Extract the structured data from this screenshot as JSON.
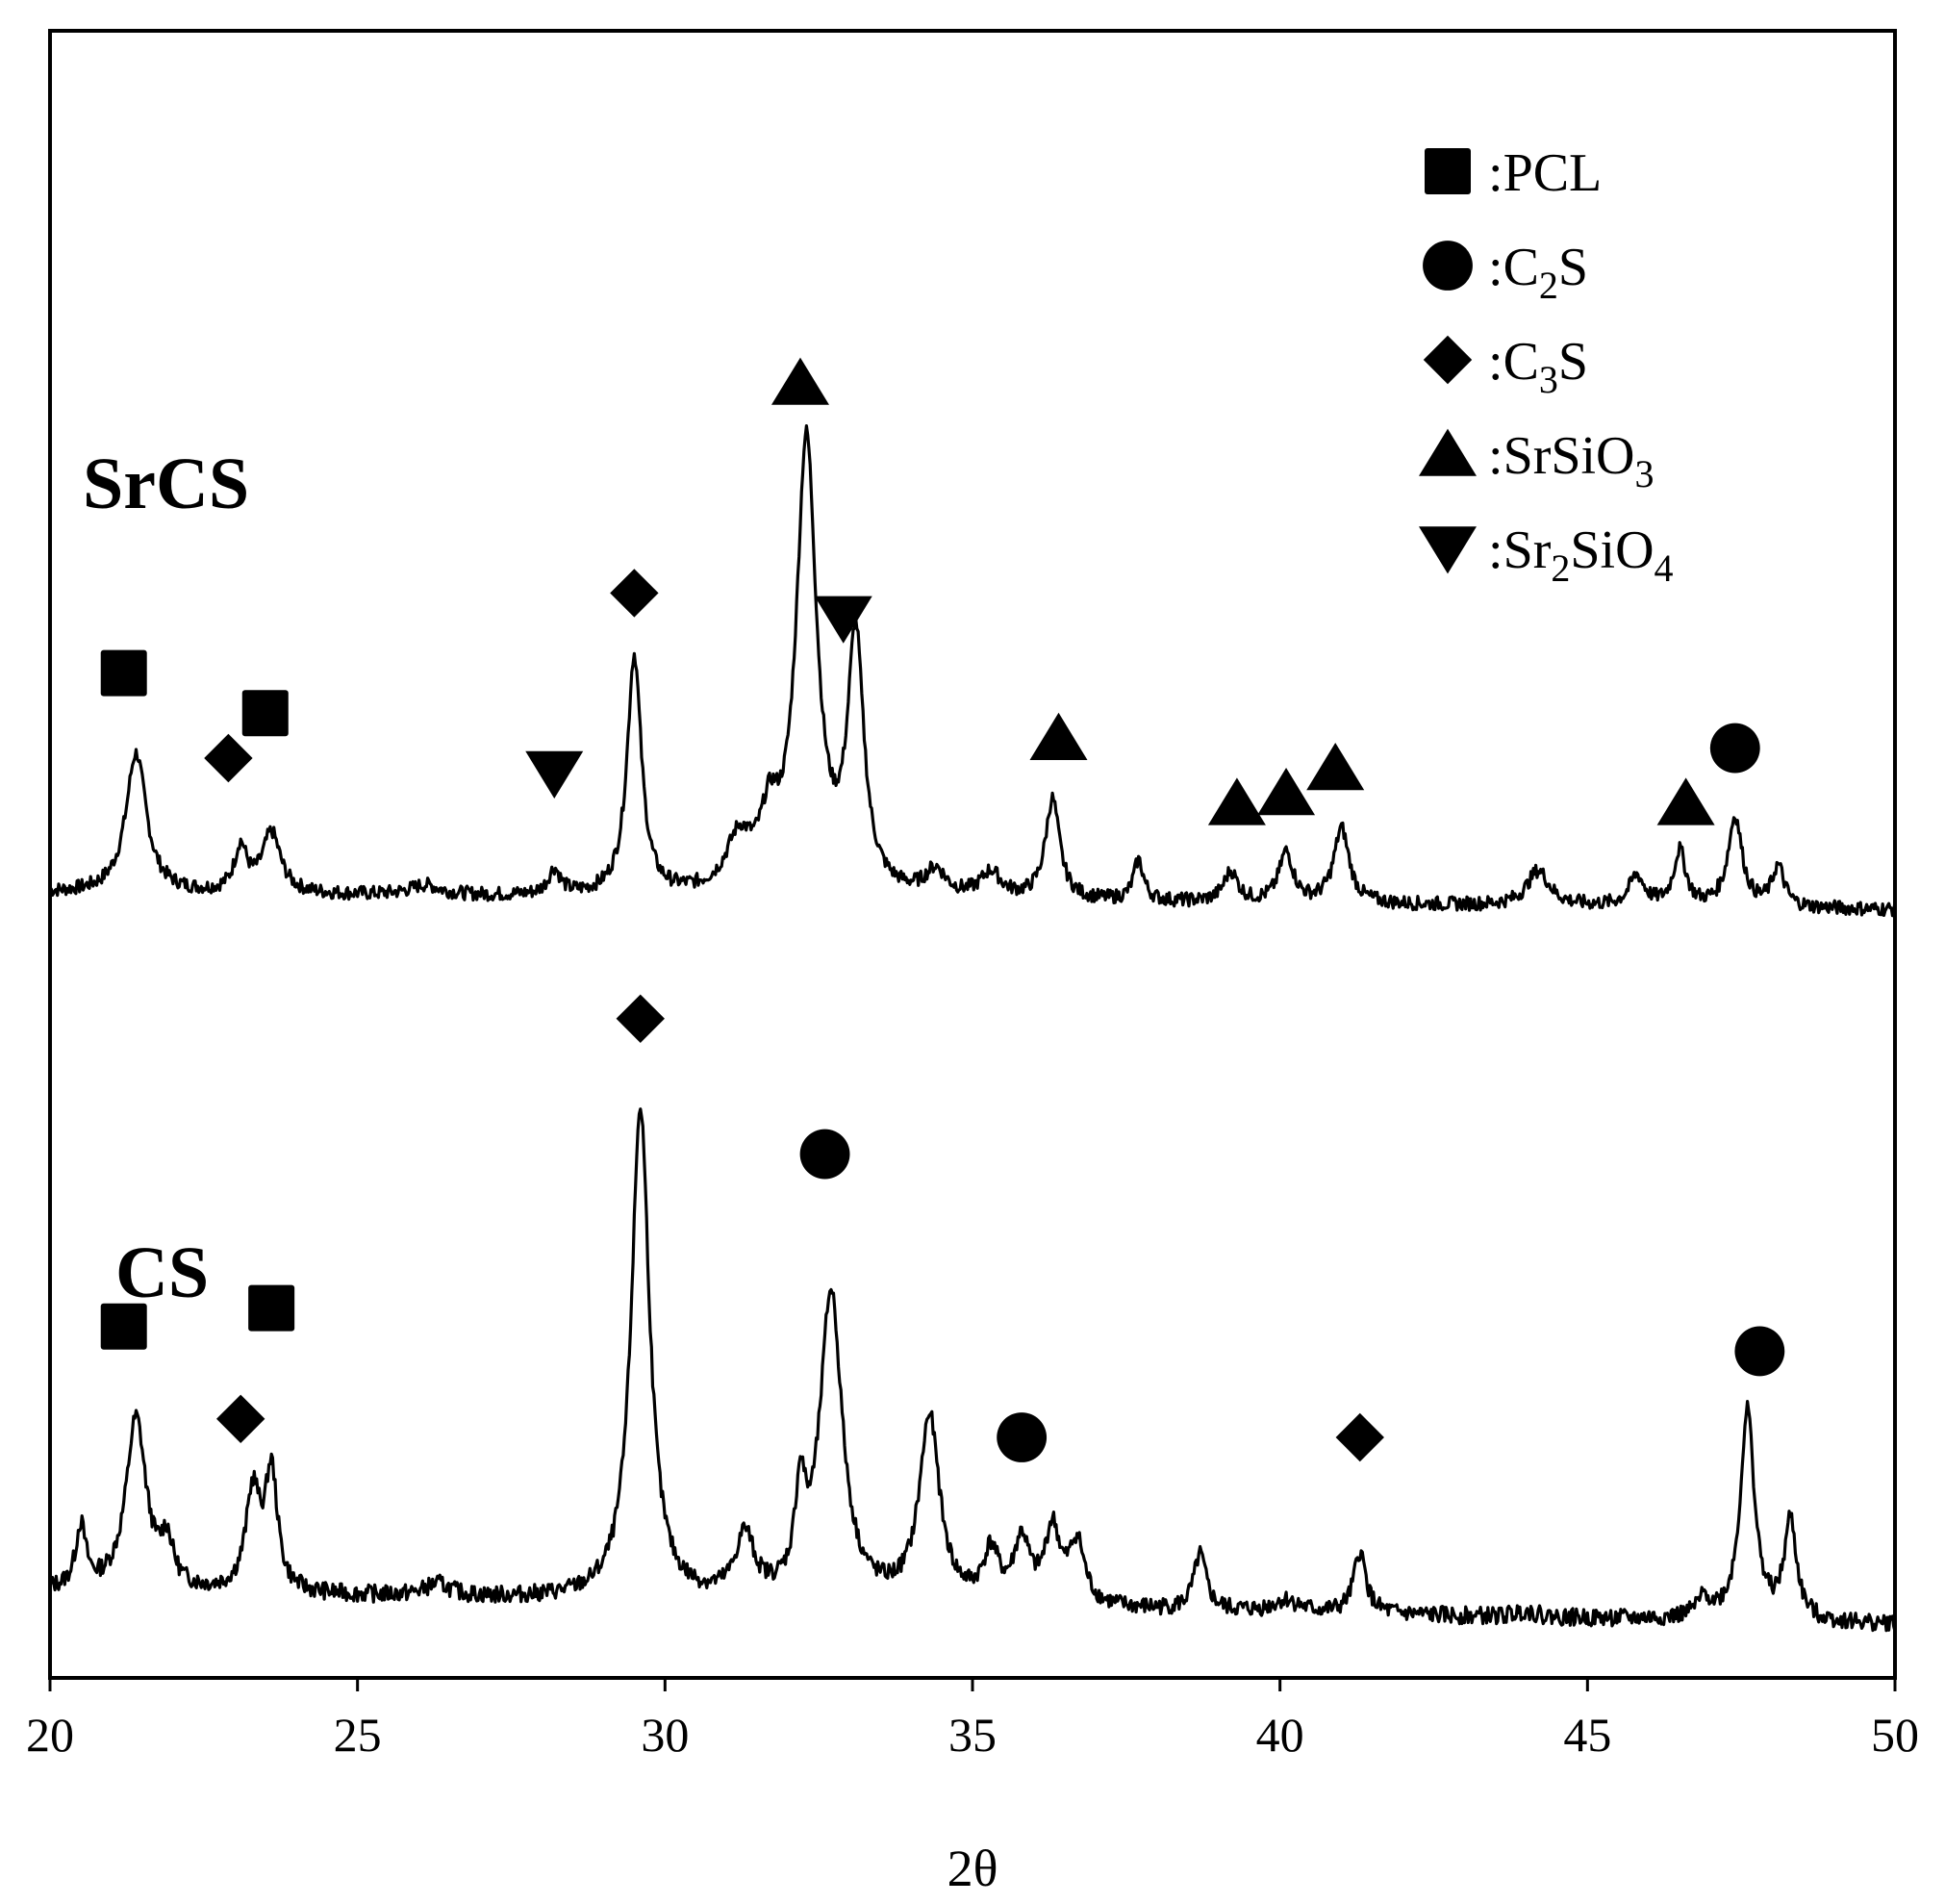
{
  "chart_data": {
    "type": "line",
    "xlabel": "2θ",
    "ylabel": "",
    "xlim": [
      20,
      50
    ],
    "x_ticks": [
      20,
      25,
      30,
      35,
      40,
      45,
      50
    ],
    "y_ticks_shown": false,
    "grid": false,
    "legend_position": "top-right",
    "legend": [
      {
        "marker": "square",
        "prefix": ":",
        "base": "PCL",
        "sub": "",
        "after": "",
        "sub2": ""
      },
      {
        "marker": "circle",
        "prefix": ":",
        "base": "C",
        "sub": "2",
        "after": "S",
        "sub2": ""
      },
      {
        "marker": "diamond",
        "prefix": ":",
        "base": "C",
        "sub": "3",
        "after": "S",
        "sub2": ""
      },
      {
        "marker": "triangle-up",
        "prefix": ":",
        "base": "SrSiO",
        "sub": "3",
        "after": "",
        "sub2": ""
      },
      {
        "marker": "triangle-down",
        "prefix": ":",
        "base": "Sr",
        "sub": "2",
        "after": "SiO",
        "sub2": "4"
      }
    ],
    "series": [
      {
        "name": "SrCS",
        "baseline": 0.08,
        "slope": -0.0011,
        "peaks": [
          {
            "x": 21.4,
            "h": 0.28,
            "w": 0.2
          },
          {
            "x": 23.1,
            "h": 0.09,
            "w": 0.12
          },
          {
            "x": 23.6,
            "h": 0.12,
            "w": 0.18
          },
          {
            "x": 26.1,
            "h": 0.02,
            "w": 0.3
          },
          {
            "x": 28.2,
            "h": 0.05,
            "w": 0.12
          },
          {
            "x": 29.5,
            "h": 0.48,
            "w": 0.14
          },
          {
            "x": 31.2,
            "h": 0.1,
            "w": 0.25
          },
          {
            "x": 31.7,
            "h": 0.12,
            "w": 0.18
          },
          {
            "x": 32.3,
            "h": 0.9,
            "w": 0.2
          },
          {
            "x": 33.1,
            "h": 0.5,
            "w": 0.16
          },
          {
            "x": 34.4,
            "h": 0.05,
            "w": 0.2
          },
          {
            "x": 35.3,
            "h": 0.05,
            "w": 0.2
          },
          {
            "x": 36.3,
            "h": 0.2,
            "w": 0.14
          },
          {
            "x": 37.7,
            "h": 0.08,
            "w": 0.1
          },
          {
            "x": 39.2,
            "h": 0.06,
            "w": 0.14
          },
          {
            "x": 40.1,
            "h": 0.1,
            "w": 0.14
          },
          {
            "x": 41.0,
            "h": 0.15,
            "w": 0.15
          },
          {
            "x": 44.2,
            "h": 0.07,
            "w": 0.22
          },
          {
            "x": 45.8,
            "h": 0.06,
            "w": 0.15
          },
          {
            "x": 46.5,
            "h": 0.11,
            "w": 0.12
          },
          {
            "x": 47.4,
            "h": 0.18,
            "w": 0.14
          },
          {
            "x": 48.1,
            "h": 0.08,
            "w": 0.12
          }
        ],
        "markers": [
          {
            "x": 21.2,
            "y": 0.52,
            "marker": "square"
          },
          {
            "x": 22.9,
            "y": 0.35,
            "marker": "diamond"
          },
          {
            "x": 23.5,
            "y": 0.44,
            "marker": "square"
          },
          {
            "x": 28.2,
            "y": 0.32,
            "marker": "triangle-down"
          },
          {
            "x": 29.5,
            "y": 0.68,
            "marker": "diamond"
          },
          {
            "x": 32.2,
            "y": 1.1,
            "marker": "triangle-up"
          },
          {
            "x": 32.9,
            "y": 0.63,
            "marker": "triangle-down"
          },
          {
            "x": 36.4,
            "y": 0.39,
            "marker": "triangle-up"
          },
          {
            "x": 39.3,
            "y": 0.26,
            "marker": "triangle-up"
          },
          {
            "x": 40.1,
            "y": 0.28,
            "marker": "triangle-up"
          },
          {
            "x": 40.9,
            "y": 0.33,
            "marker": "triangle-up"
          },
          {
            "x": 46.6,
            "y": 0.26,
            "marker": "triangle-up"
          },
          {
            "x": 47.4,
            "y": 0.37,
            "marker": "circle"
          }
        ]
      },
      {
        "name": "CS",
        "baseline": 0.1,
        "slope": -0.0018,
        "peaks": [
          {
            "x": 20.5,
            "h": 0.1,
            "w": 0.1
          },
          {
            "x": 21.4,
            "h": 0.28,
            "w": 0.2
          },
          {
            "x": 21.9,
            "h": 0.07,
            "w": 0.12
          },
          {
            "x": 23.3,
            "h": 0.16,
            "w": 0.14
          },
          {
            "x": 23.6,
            "h": 0.19,
            "w": 0.12
          },
          {
            "x": 26.3,
            "h": 0.02,
            "w": 0.25
          },
          {
            "x": 29.6,
            "h": 0.8,
            "w": 0.18
          },
          {
            "x": 31.3,
            "h": 0.1,
            "w": 0.18
          },
          {
            "x": 32.2,
            "h": 0.15,
            "w": 0.1
          },
          {
            "x": 32.7,
            "h": 0.5,
            "w": 0.22
          },
          {
            "x": 34.3,
            "h": 0.3,
            "w": 0.2
          },
          {
            "x": 35.3,
            "h": 0.08,
            "w": 0.15
          },
          {
            "x": 35.8,
            "h": 0.1,
            "w": 0.15
          },
          {
            "x": 36.3,
            "h": 0.12,
            "w": 0.15
          },
          {
            "x": 36.7,
            "h": 0.1,
            "w": 0.15
          },
          {
            "x": 38.7,
            "h": 0.09,
            "w": 0.12
          },
          {
            "x": 40.1,
            "h": 0.02,
            "w": 0.25
          },
          {
            "x": 41.3,
            "h": 0.1,
            "w": 0.12
          },
          {
            "x": 44.0,
            "h": 0.01,
            "w": 0.2
          },
          {
            "x": 46.9,
            "h": 0.03,
            "w": 0.15
          },
          {
            "x": 47.6,
            "h": 0.34,
            "w": 0.14
          },
          {
            "x": 48.3,
            "h": 0.16,
            "w": 0.12
          }
        ],
        "markers": [
          {
            "x": 21.2,
            "y": 0.53,
            "marker": "square"
          },
          {
            "x": 23.1,
            "y": 0.38,
            "marker": "diamond"
          },
          {
            "x": 23.6,
            "y": 0.56,
            "marker": "square"
          },
          {
            "x": 29.6,
            "y": 1.03,
            "marker": "diamond"
          },
          {
            "x": 32.6,
            "y": 0.81,
            "marker": "circle"
          },
          {
            "x": 35.8,
            "y": 0.35,
            "marker": "circle"
          },
          {
            "x": 41.3,
            "y": 0.35,
            "marker": "diamond"
          },
          {
            "x": 47.8,
            "y": 0.49,
            "marker": "circle"
          }
        ]
      }
    ]
  }
}
